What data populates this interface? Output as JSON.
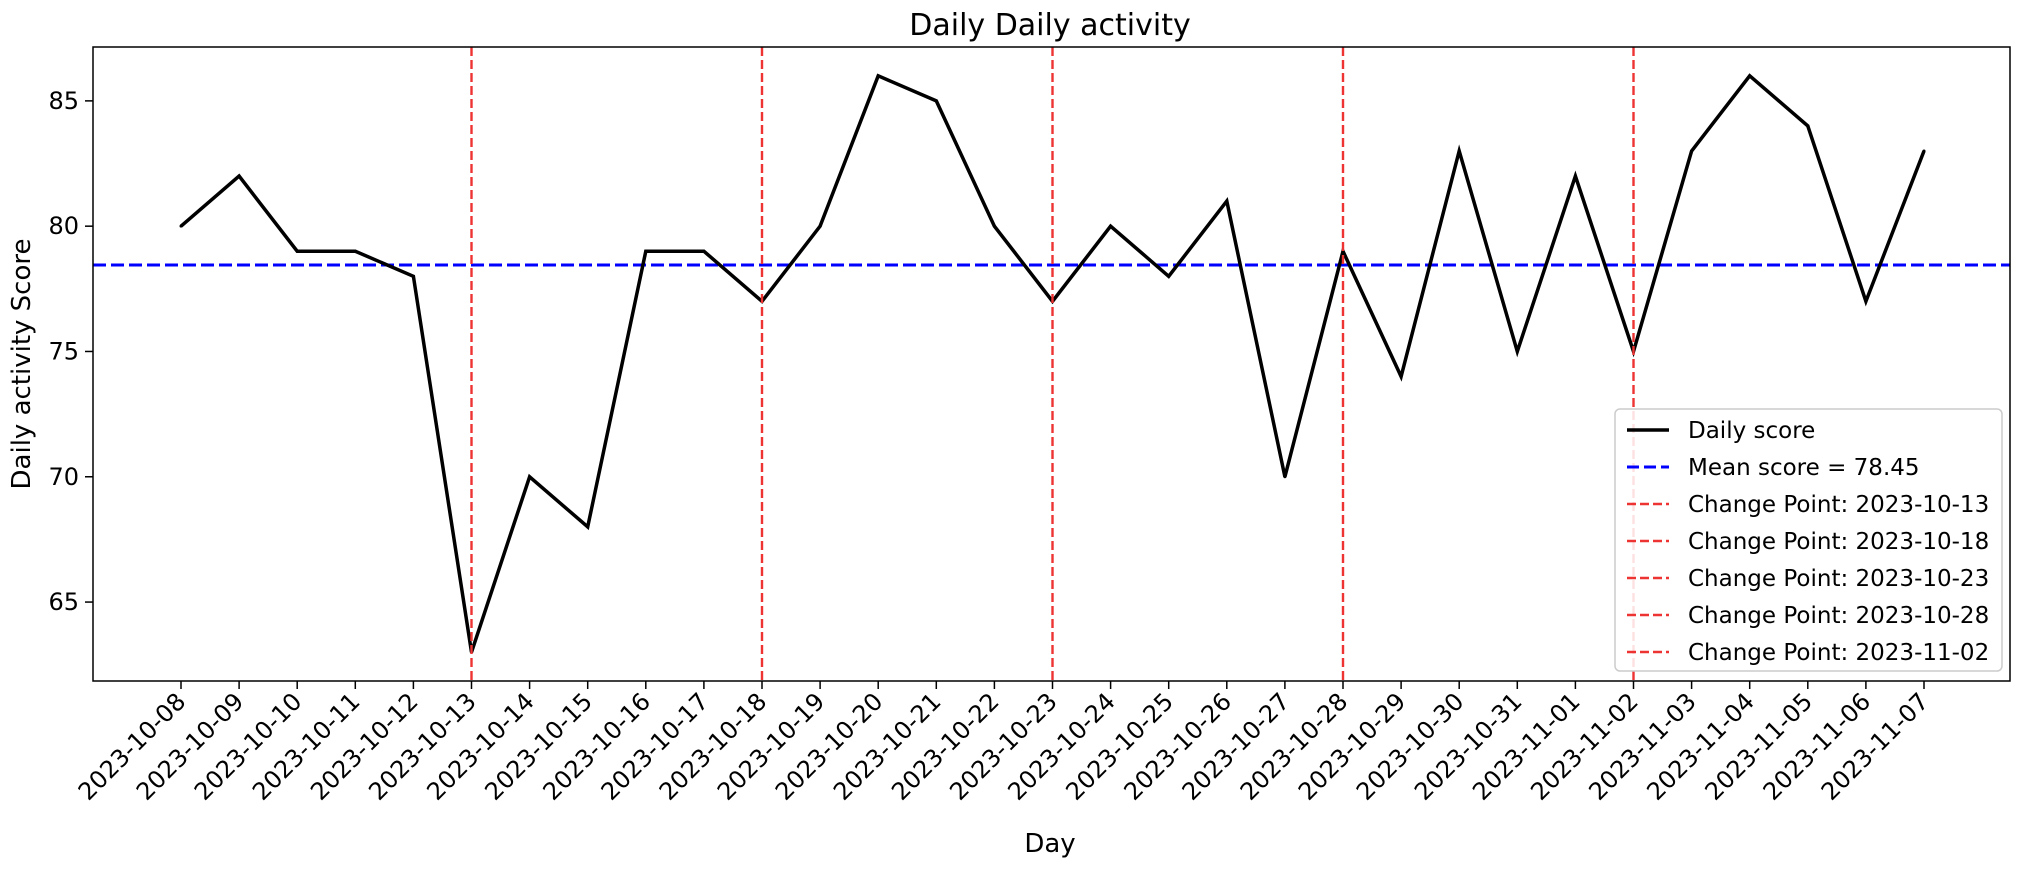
{
  "chart_data": {
    "type": "line",
    "title": "Daily Daily activity",
    "xlabel": "Day",
    "ylabel": "Daily activity Score",
    "x": [
      "2023-10-08",
      "2023-10-09",
      "2023-10-10",
      "2023-10-11",
      "2023-10-12",
      "2023-10-13",
      "2023-10-14",
      "2023-10-15",
      "2023-10-16",
      "2023-10-17",
      "2023-10-18",
      "2023-10-19",
      "2023-10-20",
      "2023-10-21",
      "2023-10-22",
      "2023-10-23",
      "2023-10-24",
      "2023-10-25",
      "2023-10-26",
      "2023-10-27",
      "2023-10-28",
      "2023-10-29",
      "2023-10-30",
      "2023-10-31",
      "2023-11-01",
      "2023-11-02",
      "2023-11-03",
      "2023-11-04",
      "2023-11-05",
      "2023-11-06",
      "2023-11-07"
    ],
    "series": [
      {
        "name": "Daily score",
        "color": "#000000",
        "values": [
          80,
          82,
          79,
          79,
          78,
          63,
          70,
          68,
          79,
          79,
          77,
          80,
          86,
          85,
          80,
          77,
          80,
          78,
          81,
          70,
          79,
          74,
          83,
          75,
          82,
          75,
          83,
          86,
          84,
          77,
          83
        ]
      }
    ],
    "mean_line": {
      "label": "Mean score = 78.45",
      "value": 78.45,
      "color": "#0000ff"
    },
    "change_points": [
      {
        "label": "Change Point: 2023-10-13",
        "x": "2023-10-13"
      },
      {
        "label": "Change Point: 2023-10-18",
        "x": "2023-10-18"
      },
      {
        "label": "Change Point: 2023-10-23",
        "x": "2023-10-23"
      },
      {
        "label": "Change Point: 2023-10-28",
        "x": "2023-10-28"
      },
      {
        "label": "Change Point: 2023-11-02",
        "x": "2023-11-02"
      }
    ],
    "change_point_color": "#ee3333",
    "y_ticks": [
      65,
      70,
      75,
      80,
      85
    ],
    "ylim": [
      61.85,
      87.15
    ],
    "grid": false,
    "legend_position": "lower-right"
  }
}
